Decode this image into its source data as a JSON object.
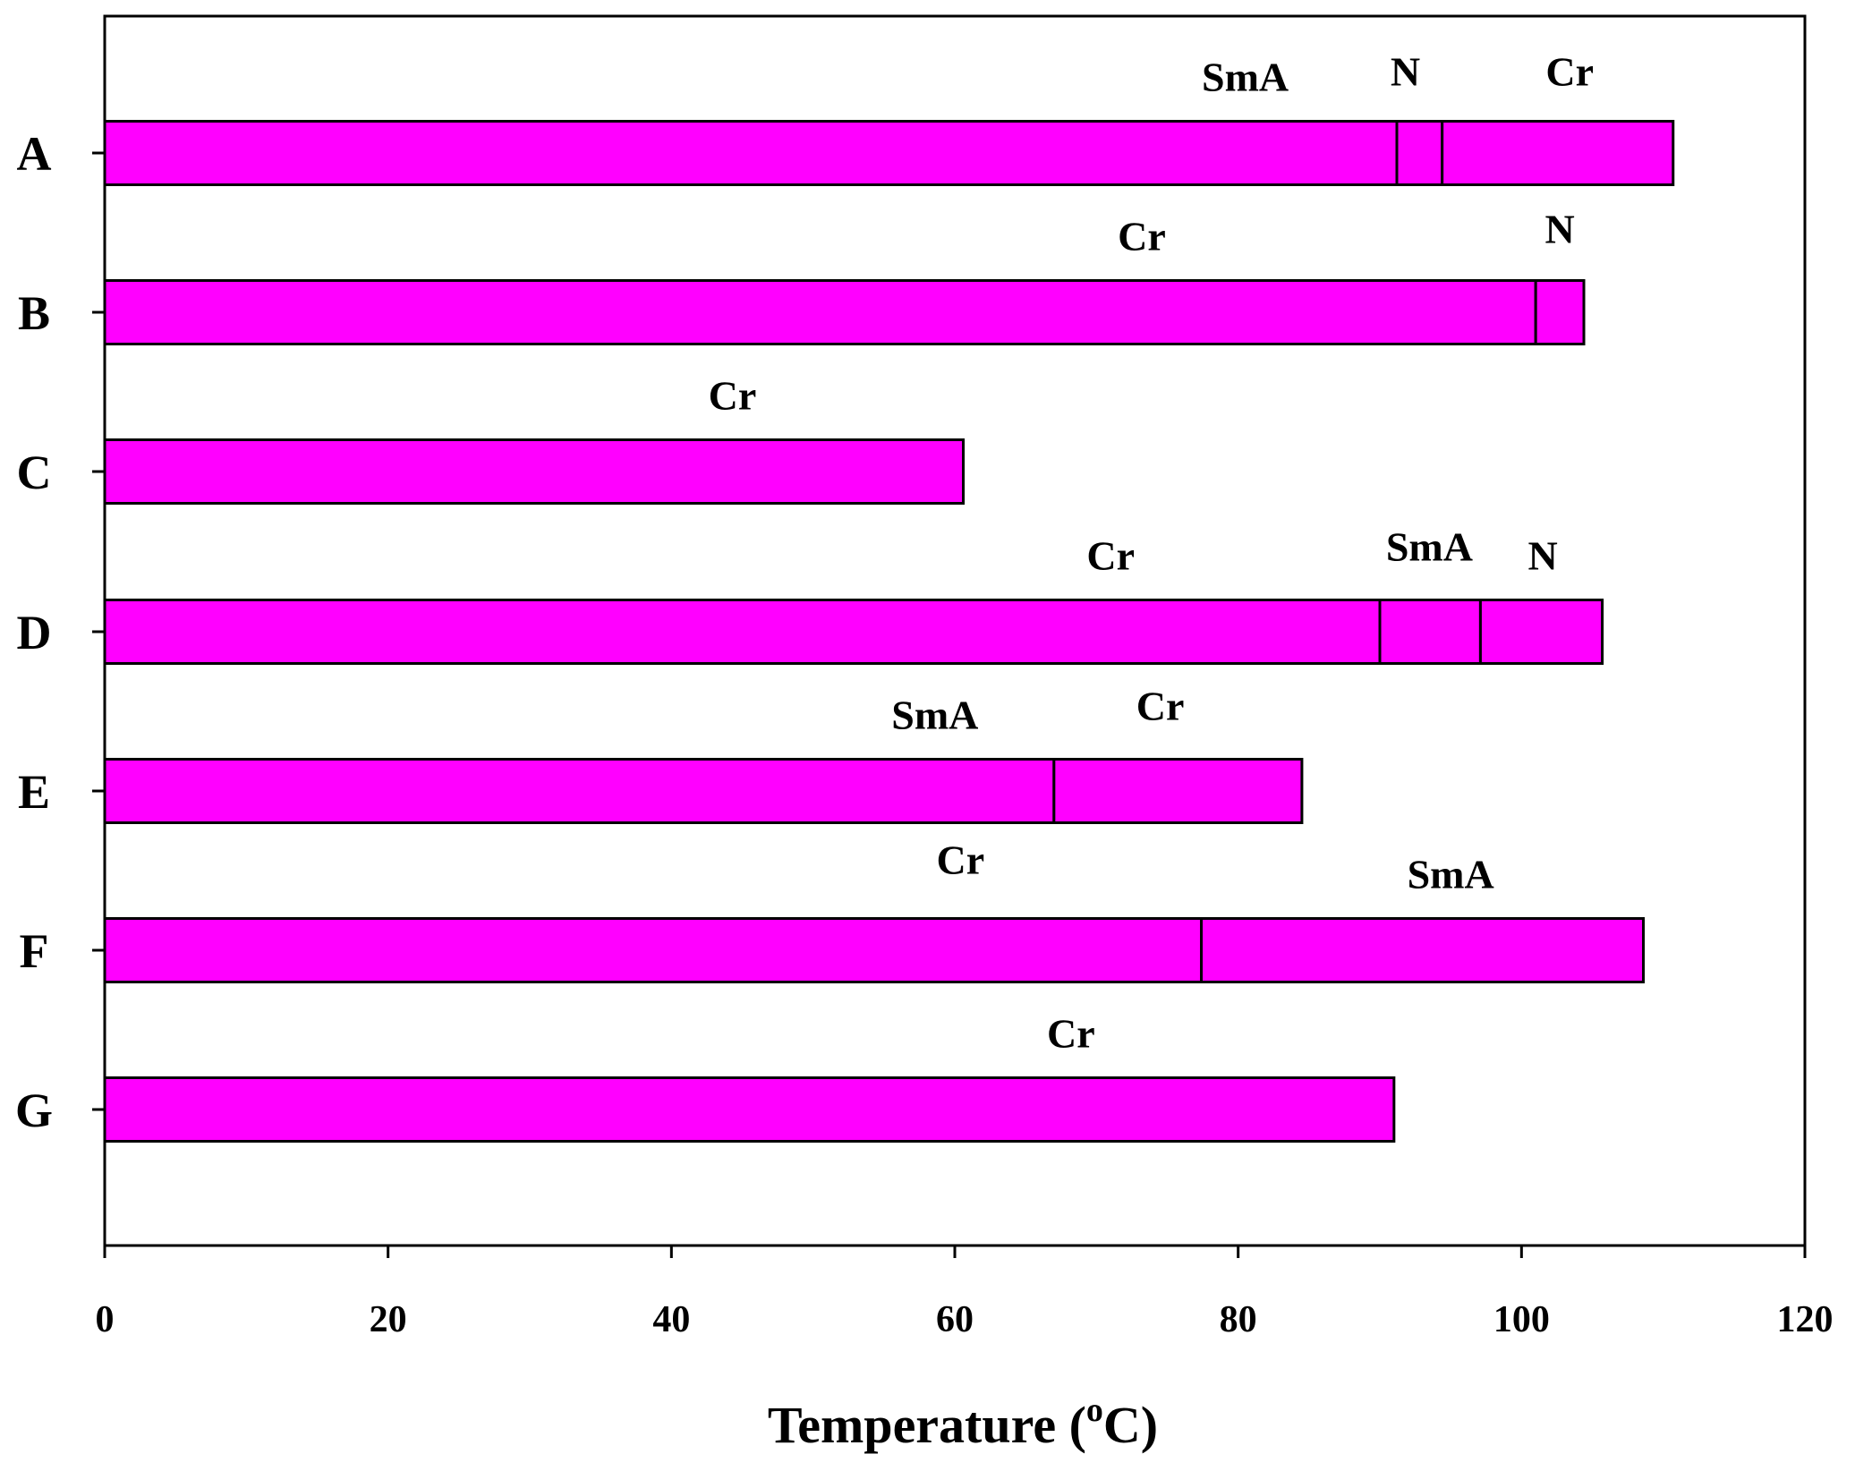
{
  "chart_data": {
    "type": "bar",
    "orientation": "horizontal",
    "stacked": true,
    "title": "",
    "xlabel_prefix": "Temperature (",
    "xlabel_superscript": "o",
    "xlabel_suffix": "C)",
    "ylabel": "",
    "xlim": [
      0,
      120
    ],
    "xticks": [
      0,
      20,
      40,
      60,
      80,
      100,
      120
    ],
    "grid": false,
    "legend": "none",
    "bar_color": "#ff00ff",
    "edge_color": "#000000",
    "categories": [
      "A",
      "B",
      "C",
      "D",
      "E",
      "F",
      "G"
    ],
    "bars": [
      {
        "category": "A",
        "segments": [
          {
            "phase": "SmA",
            "start": 0,
            "end": 91.2
          },
          {
            "phase": "N",
            "start": 91.2,
            "end": 94.4
          },
          {
            "phase": "Cr",
            "start": 94.4,
            "end": 110.7
          }
        ]
      },
      {
        "category": "B",
        "segments": [
          {
            "phase": "Cr",
            "start": 0,
            "end": 101.0
          },
          {
            "phase": "N",
            "start": 101.0,
            "end": 104.4
          }
        ]
      },
      {
        "category": "C",
        "segments": [
          {
            "phase": "Cr",
            "start": 0,
            "end": 60.6
          }
        ]
      },
      {
        "category": "D",
        "segments": [
          {
            "phase": "Cr",
            "start": 0,
            "end": 90.0
          },
          {
            "phase": "SmA",
            "start": 90.0,
            "end": 97.1
          },
          {
            "phase": "N",
            "start": 97.1,
            "end": 105.7
          }
        ]
      },
      {
        "category": "E",
        "segments": [
          {
            "phase": "SmA",
            "start": 0,
            "end": 67.0
          },
          {
            "phase": "Cr",
            "start": 67.0,
            "end": 84.5
          }
        ]
      },
      {
        "category": "F",
        "segments": [
          {
            "phase": "Cr",
            "start": 0,
            "end": 77.4
          },
          {
            "phase": "SmA",
            "start": 77.4,
            "end": 108.6
          }
        ]
      },
      {
        "category": "G",
        "segments": [
          {
            "phase": "Cr",
            "start": 0,
            "end": 91.0
          }
        ]
      }
    ],
    "phase_labels": [
      {
        "category": "A",
        "text": "SmA",
        "at": 80.5
      },
      {
        "category": "A",
        "text": "N",
        "at": 91.8
      },
      {
        "category": "A",
        "text": "Cr",
        "at": 103.4
      },
      {
        "category": "B",
        "text": "Cr",
        "at": 73.2
      },
      {
        "category": "B",
        "text": "N",
        "at": 102.7
      },
      {
        "category": "C",
        "text": "Cr",
        "at": 44.3
      },
      {
        "category": "D",
        "text": "Cr",
        "at": 71.0
      },
      {
        "category": "D",
        "text": "SmA",
        "at": 93.5
      },
      {
        "category": "D",
        "text": "N",
        "at": 101.5
      },
      {
        "category": "E",
        "text": "SmA",
        "at": 58.6
      },
      {
        "category": "E",
        "text": "Cr",
        "at": 74.5
      },
      {
        "category": "F",
        "text": "Cr",
        "at": 60.4
      },
      {
        "category": "F",
        "text": "SmA",
        "at": 95.0
      },
      {
        "category": "G",
        "text": "Cr",
        "at": 68.2
      }
    ]
  }
}
